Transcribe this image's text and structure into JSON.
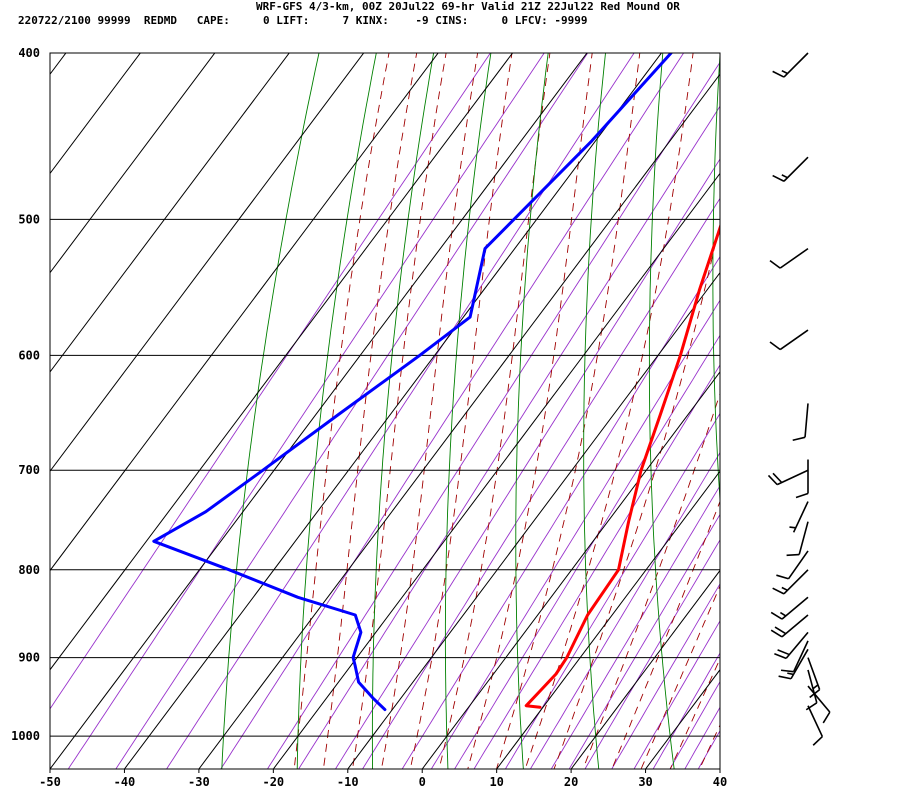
{
  "header": {
    "title": "WRF-GFS 4/3-km, 00Z 20Jul22 69-hr Valid 21Z 22Jul22 Red Mound OR",
    "subtitle": "220722/2100 99999  REDMD   CAPE:     0 LIFT:     7 KINX:    -9 CINS:     0 LFCV: -9999"
  },
  "colors": {
    "temperature": "#ff0000",
    "dewpoint": "#0000ff",
    "isotherm": "#000000",
    "isobar": "#000000",
    "dry_adiabat": "#008000",
    "moist_adiabat": "#a00000",
    "mixing_ratio": "#9933cc",
    "wind_barb": "#000000"
  },
  "chart_data": {
    "type": "line",
    "diagram": "skew-T log-P",
    "x_ticks": [
      "-50",
      "-40",
      "-30",
      "-20",
      "-10",
      "0",
      "10",
      "20",
      "30",
      "40"
    ],
    "y_ticks": [
      "400",
      "500",
      "600",
      "700",
      "800",
      "900",
      "1000"
    ],
    "xlim": [
      -50,
      40
    ],
    "ylim": [
      400,
      1045
    ],
    "y_scale": "log",
    "grid": true,
    "series": [
      {
        "key": "temperature",
        "points": [
          [
            400,
            -24.3
          ],
          [
            450,
            -19.6
          ],
          [
            500,
            -15.0
          ],
          [
            550,
            -11.0
          ],
          [
            600,
            -7.0
          ],
          [
            650,
            -3.7
          ],
          [
            700,
            -0.7
          ],
          [
            750,
            2.8
          ],
          [
            800,
            6.3
          ],
          [
            850,
            6.7
          ],
          [
            880,
            7.6
          ],
          [
            900,
            8.2
          ],
          [
            920,
            8.4
          ],
          [
            940,
            8.0
          ],
          [
            960,
            7.6
          ],
          [
            962,
            9.6
          ]
        ]
      },
      {
        "key": "dewpoint",
        "points": [
          [
            400,
            -38.7
          ],
          [
            450,
            -40.5
          ],
          [
            520,
            -44.0
          ],
          [
            570,
            -39.1
          ],
          [
            600,
            -42.0
          ],
          [
            650,
            -47.0
          ],
          [
            700,
            -51.5
          ],
          [
            740,
            -55.0
          ],
          [
            770,
            -59.0
          ],
          [
            800,
            -46.0
          ],
          [
            830,
            -34.0
          ],
          [
            850,
            -24.5
          ],
          [
            870,
            -22.0
          ],
          [
            900,
            -20.5
          ],
          [
            910,
            -19.4
          ],
          [
            930,
            -17.3
          ],
          [
            950,
            -13.8
          ],
          [
            965,
            -11.0
          ]
        ]
      }
    ],
    "wind_profile": {
      "units": "kt",
      "levels": [
        {
          "p": 400,
          "dir": 225,
          "spd": 15
        },
        {
          "p": 460,
          "dir": 225,
          "spd": 15
        },
        {
          "p": 520,
          "dir": 235,
          "spd": 10
        },
        {
          "p": 580,
          "dir": 235,
          "spd": 10
        },
        {
          "p": 640,
          "dir": 185,
          "spd": 10
        },
        {
          "p": 690,
          "dir": 180,
          "spd": 10
        },
        {
          "p": 700,
          "dir": 245,
          "spd": 20
        },
        {
          "p": 730,
          "dir": 205,
          "spd": 5
        },
        {
          "p": 750,
          "dir": 195,
          "spd": 10
        },
        {
          "p": 780,
          "dir": 215,
          "spd": 10
        },
        {
          "p": 800,
          "dir": 225,
          "spd": 15
        },
        {
          "p": 830,
          "dir": 230,
          "spd": 15
        },
        {
          "p": 850,
          "dir": 230,
          "spd": 20
        },
        {
          "p": 870,
          "dir": 220,
          "spd": 20
        },
        {
          "p": 880,
          "dir": 205,
          "spd": 10
        },
        {
          "p": 890,
          "dir": 210,
          "spd": 15
        },
        {
          "p": 900,
          "dir": 160,
          "spd": 15
        },
        {
          "p": 915,
          "dir": 165,
          "spd": 10
        },
        {
          "p": 935,
          "dir": 140,
          "spd": 10
        },
        {
          "p": 960,
          "dir": 155,
          "spd": 10
        }
      ]
    }
  }
}
